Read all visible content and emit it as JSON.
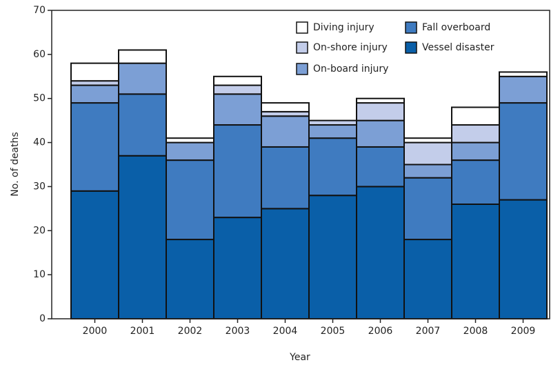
{
  "chart_data": {
    "type": "stacked-bar",
    "x_label": "Year",
    "y_label": "No. of deaths",
    "categories": [
      "2000",
      "2001",
      "2002",
      "2003",
      "2004",
      "2005",
      "2006",
      "2007",
      "2008",
      "2009"
    ],
    "series": [
      {
        "name": "Vessel disaster",
        "color": "#0a5fa8",
        "values": [
          29,
          37,
          18,
          23,
          25,
          28,
          30,
          18,
          26,
          27
        ]
      },
      {
        "name": "Fall overboard",
        "color": "#3f7bc0",
        "values": [
          20,
          14,
          18,
          21,
          14,
          13,
          9,
          14,
          10,
          22
        ]
      },
      {
        "name": "On-board injury",
        "color": "#7c9fd5",
        "values": [
          4,
          7,
          4,
          7,
          7,
          3,
          6,
          3,
          4,
          6
        ]
      },
      {
        "name": "On-shore injury",
        "color": "#c3cdea",
        "values": [
          1,
          0,
          0,
          2,
          1,
          1,
          4,
          5,
          4,
          0
        ]
      },
      {
        "name": "Diving injury",
        "color": "#ffffff",
        "values": [
          4,
          3,
          1,
          2,
          2,
          0,
          1,
          1,
          4,
          1
        ]
      }
    ],
    "ylim": [
      0,
      70
    ],
    "yticks": [
      0,
      10,
      20,
      30,
      40,
      50,
      60,
      70
    ]
  }
}
